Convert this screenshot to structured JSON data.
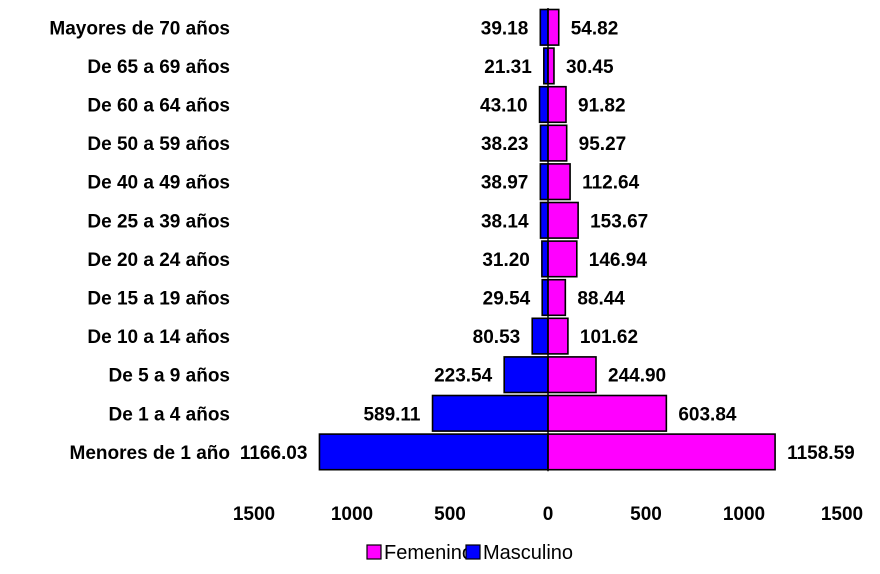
{
  "chart_data": {
    "type": "bar",
    "orientation": "horizontal-population-pyramid",
    "categories": [
      "Menores de 1 año",
      "De 1 a 4 años",
      "De 5 a 9 años",
      "De 10 a 14 años",
      "De 15 a 19 años",
      "De 20 a 24 años",
      "De 25 a 39 años",
      "De 40 a 49 años",
      "De 50 a 59 años",
      "De 60 a 64 años",
      "De 65 a 69 años",
      "Mayores de 70 años"
    ],
    "series": [
      {
        "name": "Masculino",
        "color": "#0000FF",
        "side": "left",
        "values": [
          1166.03,
          589.11,
          223.54,
          80.53,
          29.54,
          31.2,
          38.14,
          38.97,
          38.23,
          43.1,
          21.31,
          39.18
        ],
        "labels": [
          "1166.03",
          "589.11",
          "223.54",
          "80.53",
          "29.54",
          "31.20",
          "38.14",
          "38.97",
          "38.23",
          "43.10",
          "21.31",
          "39.18"
        ]
      },
      {
        "name": "Femenino",
        "color": "#FF00FF",
        "side": "right",
        "values": [
          1158.59,
          603.84,
          244.9,
          101.62,
          88.44,
          146.94,
          153.67,
          112.64,
          95.27,
          91.82,
          30.45,
          54.82
        ],
        "labels": [
          "1158.59",
          "603.84",
          "244.90",
          "101.62",
          "88.44",
          "146.94",
          "153.67",
          "112.64",
          "95.27",
          "91.82",
          "30.45",
          "54.82"
        ]
      }
    ],
    "xlim": [
      -1500,
      1500
    ],
    "xticks": [
      -1500,
      -1000,
      -500,
      0,
      500,
      1000,
      1500
    ],
    "xtick_labels": [
      "1500",
      "1000",
      "500",
      "0",
      "500",
      "1000",
      "1500"
    ],
    "legend": {
      "placement": "bottom",
      "entries": [
        "Femenino",
        "Masculino"
      ]
    },
    "grid": false
  }
}
